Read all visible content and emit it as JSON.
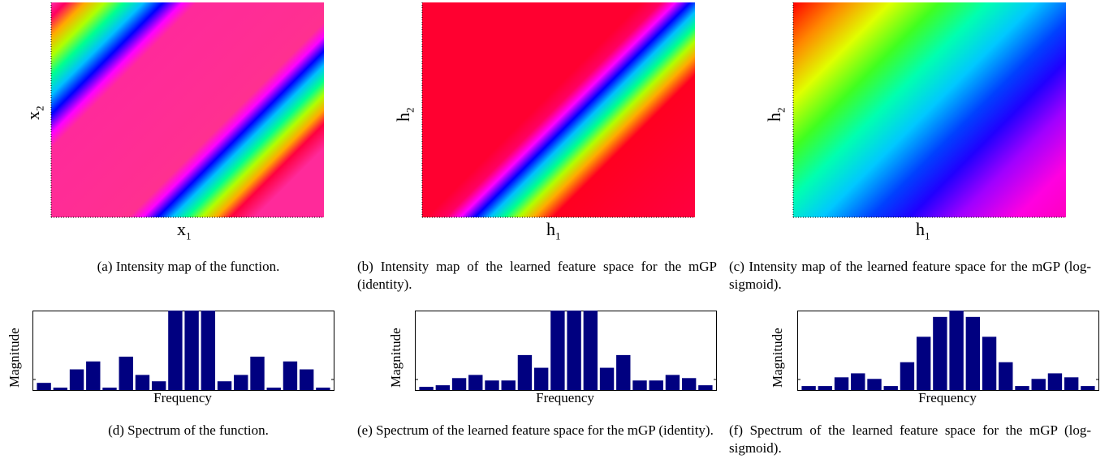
{
  "colors": {
    "bar": "#000080",
    "axis": "#000000"
  },
  "chart_data": [
    {
      "type": "heatmap",
      "id": "a",
      "xlabel_main": "x",
      "xlabel_sub": "1",
      "ylabel_main": "x",
      "ylabel_sub": "2",
      "colormap": "hsv",
      "caption": "(a) Intensity map of the function."
    },
    {
      "type": "heatmap",
      "id": "b",
      "xlabel_main": "h",
      "xlabel_sub": "1",
      "ylabel_main": "h",
      "ylabel_sub": "2",
      "colormap": "hsv",
      "caption": "(b) Intensity map of the learned feature space for the mGP (identity)."
    },
    {
      "type": "heatmap",
      "id": "c",
      "xlabel_main": "h",
      "xlabel_sub": "1",
      "ylabel_main": "h",
      "ylabel_sub": "2",
      "colormap": "hsv",
      "caption": "(c) Intensity map of the learned feature space for the mGP (log-sigmoid)."
    },
    {
      "type": "bar",
      "id": "d",
      "xlabel": "Frequency",
      "ylabel": "Magnitude",
      "ylim": [
        0,
        1
      ],
      "values": [
        0.09,
        0.03,
        0.26,
        0.36,
        0.03,
        0.42,
        0.19,
        0.11,
        1.0,
        1.0,
        1.0,
        0.11,
        0.19,
        0.42,
        0.03,
        0.36,
        0.26,
        0.03
      ],
      "caption": "(d) Spectrum of the function."
    },
    {
      "type": "bar",
      "id": "e",
      "xlabel": "Frequency",
      "ylabel": "Magnitude",
      "ylim": [
        0,
        1
      ],
      "values": [
        0.04,
        0.06,
        0.15,
        0.19,
        0.12,
        0.12,
        0.44,
        0.28,
        1.0,
        1.0,
        1.0,
        0.28,
        0.44,
        0.12,
        0.12,
        0.19,
        0.15,
        0.06
      ],
      "caption": "(e) Spectrum of the learned feature space for the mGP (identity)."
    },
    {
      "type": "bar",
      "id": "f",
      "xlabel": "Frequency",
      "ylabel": "Magnitude",
      "ylim": [
        0,
        1
      ],
      "values": [
        0.05,
        0.05,
        0.16,
        0.21,
        0.14,
        0.05,
        0.35,
        0.67,
        0.92,
        1.0,
        0.92,
        0.67,
        0.35,
        0.05,
        0.14,
        0.21,
        0.16,
        0.05
      ],
      "caption": "(f) Spectrum of the learned feature space for the mGP (log-sigmoid)."
    }
  ]
}
